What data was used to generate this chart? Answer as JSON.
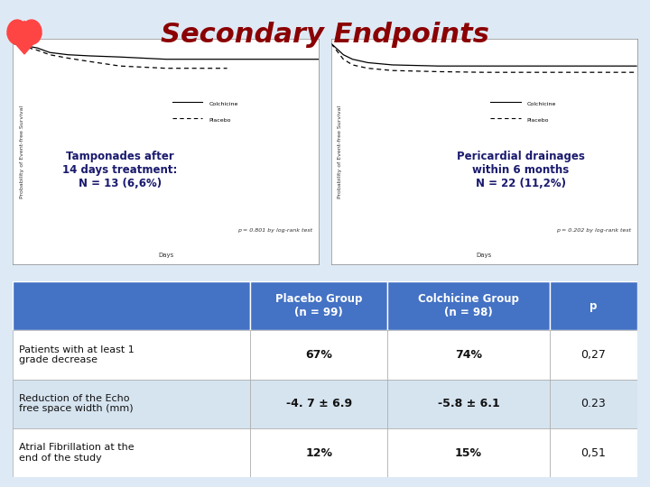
{
  "title": "Secondary Endpoints",
  "title_color": "#8B0000",
  "title_fontsize": 22,
  "title_fontweight": "bold",
  "background_color": "#C8D8E8",
  "slide_bg": "#DDEAF5",
  "header_color": "#4472C4",
  "header_text_color": "#FFFFFF",
  "row_colors": [
    "#FFFFFF",
    "#D6E4F0",
    "#FFFFFF"
  ],
  "col_labels": [
    "Placebo Group\n(n = 99)",
    "Colchicine Group\n(n = 98)",
    "p"
  ],
  "row_labels": [
    "Patients with at least 1\ngrade decrease",
    "Reduction of the Echo\nfree space width (mm)",
    "Atrial Fibrillation at the\nend of the study"
  ],
  "data": [
    [
      "67%",
      "74%",
      "0,27"
    ],
    [
      "-4. 7 ± 6.9",
      "-5.8 ± 6.1",
      "0.23"
    ],
    [
      "12%",
      "15%",
      "0,51"
    ]
  ],
  "left_text1": "Tamponades after\n14 days treatment:\nN = 13 (6,6%)",
  "right_text1": "Pericardial drainages\nwithin 6 months\nN = 22 (11,2%)",
  "left_pval": "p = 0.801 by log-rank test",
  "right_pval": "p = 0.202 by log-rank test"
}
